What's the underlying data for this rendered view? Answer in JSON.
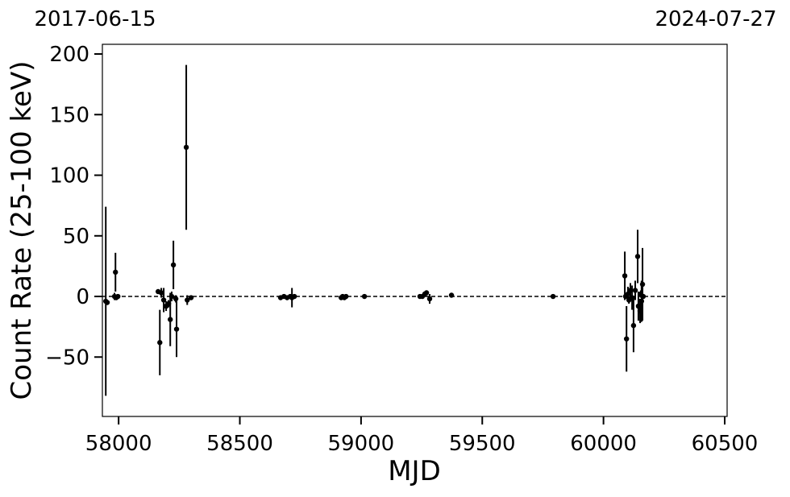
{
  "chart_data": {
    "type": "errorbar-scatter",
    "xlabel": "MJD",
    "ylabel": "Count Rate (25-100 keV)",
    "annotations": [
      "2017-06-15",
      "2024-07-27"
    ],
    "x": [
      57947,
      57953,
      57983,
      57987,
      57990,
      57997,
      58163,
      58170,
      58176,
      58186,
      58196,
      58206,
      58213,
      58219,
      58226,
      58236,
      58239,
      58279,
      58283,
      58299,
      58668,
      58682,
      58695,
      58708,
      58715,
      58725,
      58918,
      58924,
      58931,
      58938,
      59014,
      59243,
      59253,
      59263,
      59270,
      59283,
      59373,
      59792,
      60088,
      60091,
      60095,
      60101,
      60105,
      60111,
      60118,
      60124,
      60131,
      60141,
      60144,
      60151,
      60154,
      60157,
      60161,
      60164
    ],
    "values": [
      -4,
      -5,
      0,
      20,
      -1,
      0,
      4,
      -38,
      3,
      -3,
      -8,
      -6,
      -19,
      0,
      26,
      -2,
      -27,
      123,
      -3,
      -1,
      -1,
      0,
      -1,
      0,
      -1,
      0,
      -1,
      0,
      -1,
      0,
      0,
      0,
      0,
      2,
      3,
      -2,
      1,
      0,
      17,
      0,
      -35,
      2,
      -3,
      5,
      -1,
      -24,
      5,
      33,
      -8,
      -12,
      2,
      -4,
      10,
      0
    ],
    "errors": [
      78,
      2,
      3,
      16,
      2,
      1,
      2,
      27,
      4,
      10,
      4,
      3,
      22,
      4,
      20,
      3,
      23,
      68,
      4,
      2,
      2,
      2,
      2,
      2,
      8,
      2,
      2,
      2,
      2,
      2,
      1,
      2,
      2,
      2,
      2,
      4,
      1,
      1,
      20,
      2,
      27,
      6,
      3,
      6,
      10,
      22,
      8,
      22,
      12,
      10,
      3,
      17,
      30,
      2
    ],
    "color": "#000000",
    "hline": 0,
    "xlim": [
      57933,
      60510
    ],
    "xticks": [
      58000,
      58500,
      59000,
      59500,
      60000,
      60500
    ],
    "ylim": [
      -99,
      208
    ],
    "yticks": [
      {
        "value": -50,
        "label": "−50"
      },
      0,
      50,
      100,
      150,
      200
    ]
  }
}
